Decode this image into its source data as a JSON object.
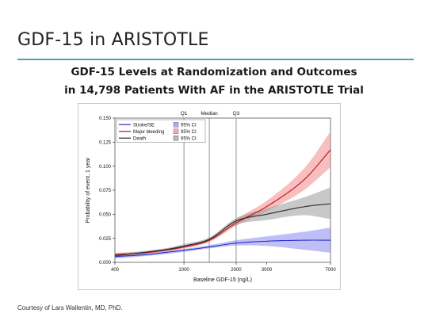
{
  "slide": {
    "title": "GDF-15 in ARISTOTLE",
    "credit": "Courtesy of Lars Wallentin, MD, PhD."
  },
  "chart_data": {
    "type": "line",
    "title_line1": "GDF-15 Levels at Randomization and Outcomes",
    "title_line2": "in 14,798 Patients With AF in the ARISTOTLE Trial",
    "xlabel": "Baseline GDF-15 (ng/L)",
    "ylabel": "Probability of event, 1 year",
    "x_scale": "log",
    "xlim": [
      400,
      7000
    ],
    "ylim": [
      0,
      0.15
    ],
    "x_ticks": [
      400,
      1000,
      2000,
      3000,
      7000
    ],
    "x_tick_labels": [
      "400",
      "1000",
      "2000",
      "3000",
      "7000"
    ],
    "y_ticks": [
      0,
      0.025,
      0.05,
      0.075,
      0.1,
      0.125,
      0.15
    ],
    "y_tick_labels": [
      "0.000",
      "0.025",
      "0.050",
      "0.075",
      "0.100",
      "0.125",
      "0.150"
    ],
    "reference_lines": [
      {
        "label": "Q1",
        "x": 1000
      },
      {
        "label": "Median",
        "x": 1400
      },
      {
        "label": "Q3",
        "x": 2000
      }
    ],
    "legend": {
      "placement": "top-left",
      "ci_label": "95% CI"
    },
    "x": [
      400,
      600,
      800,
      1000,
      1400,
      2000,
      3000,
      5000,
      7000
    ],
    "series": [
      {
        "name": "Stroke/SE",
        "color": "#2a2ad0",
        "band_color": "#8a8af0",
        "values": [
          0.006,
          0.008,
          0.0105,
          0.0125,
          0.016,
          0.02,
          0.022,
          0.023,
          0.023
        ],
        "ci_lower": [
          0.004,
          0.0065,
          0.0088,
          0.011,
          0.0145,
          0.0175,
          0.017,
          0.013,
          0.01
        ],
        "ci_upper": [
          0.008,
          0.0095,
          0.012,
          0.014,
          0.0178,
          0.023,
          0.027,
          0.032,
          0.036
        ]
      },
      {
        "name": "Major bleeding",
        "color": "#c01010",
        "band_color": "#f08a8a",
        "values": [
          0.008,
          0.01,
          0.013,
          0.016,
          0.023,
          0.041,
          0.058,
          0.087,
          0.117
        ],
        "ci_lower": [
          0.006,
          0.009,
          0.0115,
          0.0145,
          0.021,
          0.038,
          0.053,
          0.076,
          0.099
        ],
        "ci_upper": [
          0.01,
          0.0115,
          0.0145,
          0.0175,
          0.025,
          0.045,
          0.064,
          0.099,
          0.136
        ]
      },
      {
        "name": "Death",
        "color": "#2a2a2a",
        "band_color": "#9a9a9a",
        "values": [
          0.007,
          0.0105,
          0.0135,
          0.017,
          0.024,
          0.043,
          0.05,
          0.058,
          0.061
        ],
        "ci_lower": [
          0.005,
          0.009,
          0.012,
          0.015,
          0.022,
          0.039,
          0.044,
          0.049,
          0.045
        ],
        "ci_upper": [
          0.009,
          0.012,
          0.015,
          0.019,
          0.026,
          0.046,
          0.056,
          0.068,
          0.078
        ]
      }
    ]
  }
}
